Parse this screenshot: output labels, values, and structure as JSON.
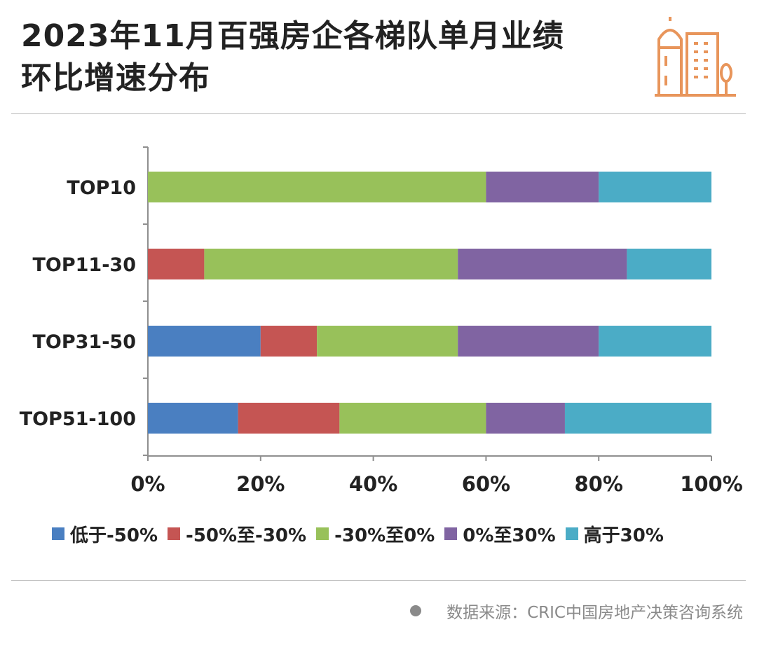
{
  "title": {
    "line1": "2023年11月百强房企各梯队单月业绩",
    "line2": "环比增速分布"
  },
  "source": "数据来源：CRIC中国房地产决策咨询系统",
  "colors": {
    "blue": "#4a7fc1",
    "red": "#c55553",
    "green": "#98c15a",
    "purple": "#8064a2",
    "cyan": "#4bacc6",
    "accent_orange": "#e8955b"
  },
  "chart_data": {
    "type": "bar",
    "orientation": "horizontal",
    "stacked": true,
    "percent": true,
    "categories": [
      "TOP10",
      "TOP11-30",
      "TOP31-50",
      "TOP51-100"
    ],
    "series": [
      {
        "name": "低于-50%",
        "color": "#4a7fc1",
        "values": [
          0,
          0,
          20,
          16
        ]
      },
      {
        "name": "-50%至-30%",
        "color": "#c55553",
        "values": [
          0,
          10,
          10,
          18
        ]
      },
      {
        "name": "-30%至0%",
        "color": "#98c15a",
        "values": [
          60,
          45,
          25,
          26
        ]
      },
      {
        "name": "0%至30%",
        "color": "#8064a2",
        "values": [
          20,
          30,
          25,
          14
        ]
      },
      {
        "name": "高于30%",
        "color": "#4bacc6",
        "values": [
          20,
          15,
          20,
          26
        ]
      }
    ],
    "xlim": [
      0,
      100
    ],
    "xticks": [
      "0%",
      "20%",
      "40%",
      "60%",
      "80%",
      "100%"
    ],
    "grid": false,
    "legend_position": "bottom"
  }
}
